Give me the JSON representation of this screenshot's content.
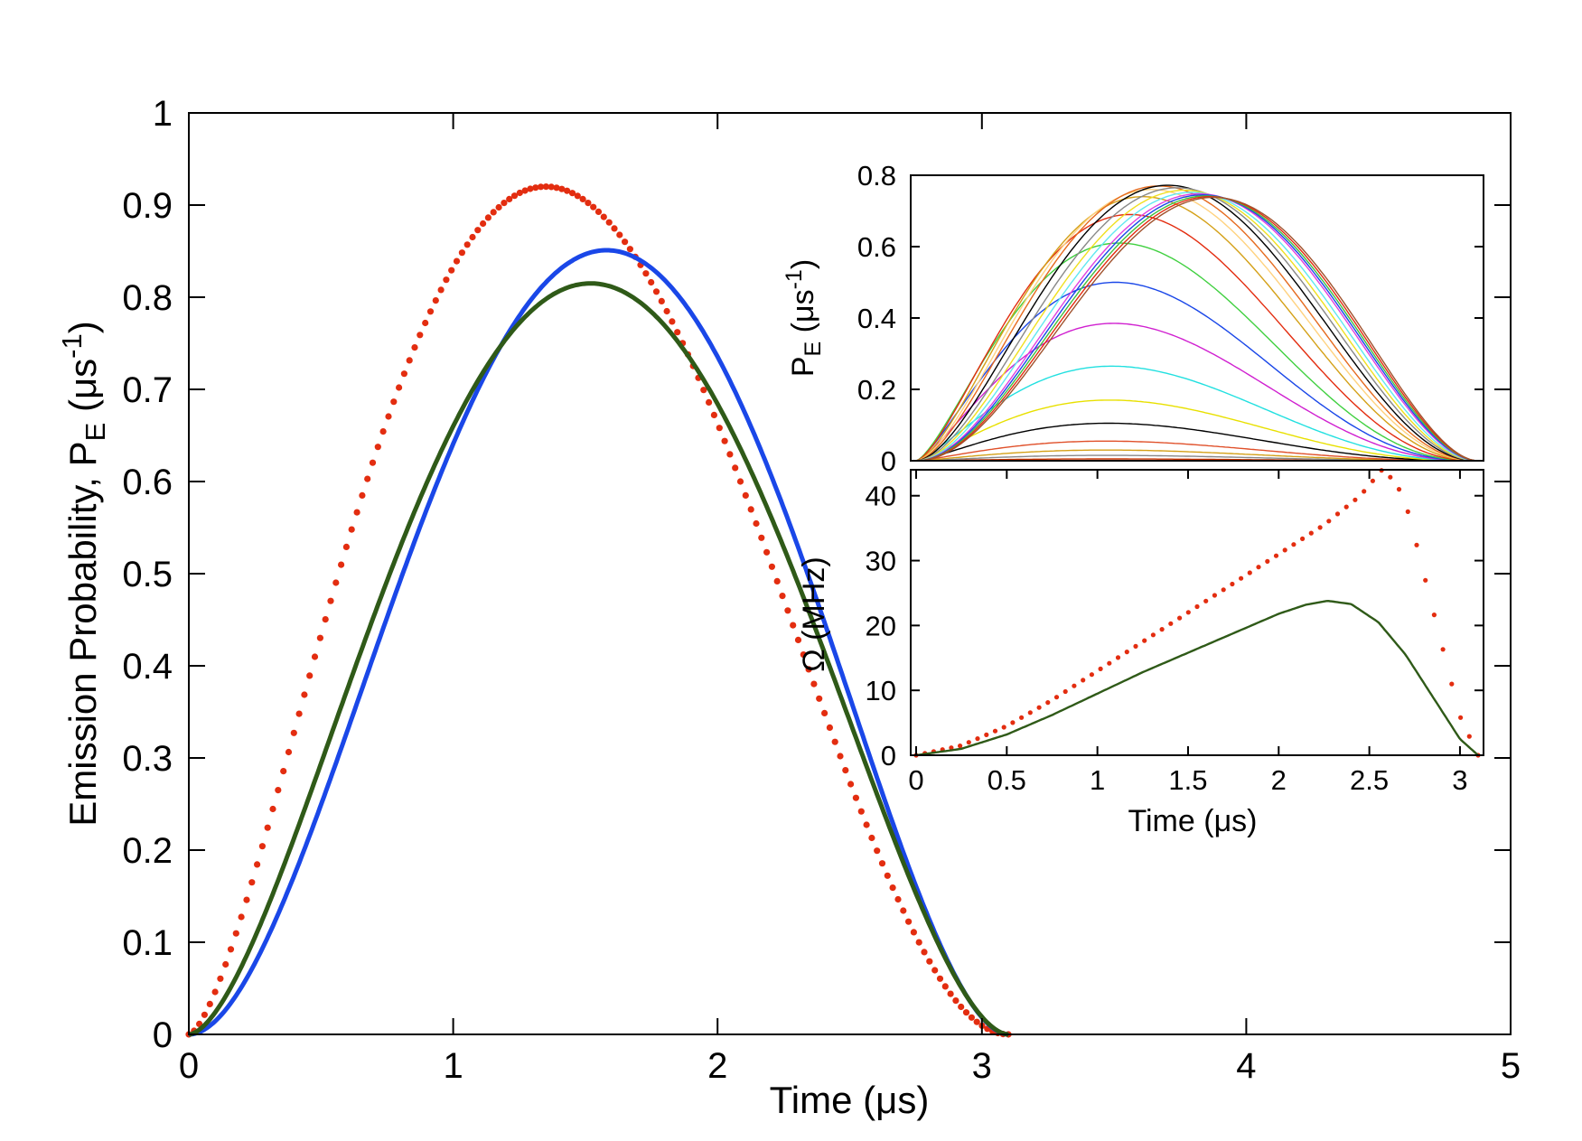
{
  "chart_data": [
    {
      "type": "line",
      "panel": "main",
      "xlabel_parts": [
        "Time (",
        "μ",
        "s)"
      ],
      "ylabel_parts": [
        "Emission Probability, P",
        "E",
        " (",
        "μ",
        "s",
        "-1",
        ")"
      ],
      "xlim": [
        0,
        5
      ],
      "ylim": [
        0,
        1
      ],
      "xticks": [
        0,
        1,
        2,
        3,
        4,
        5
      ],
      "xtick_labels": [
        "0",
        "1",
        "2",
        "3",
        "4",
        "5"
      ],
      "yticks": [
        0,
        0.1,
        0.2,
        0.3,
        0.4,
        0.5,
        0.6,
        0.7,
        0.8,
        0.9,
        1
      ],
      "ytick_labels": [
        "0",
        "0.1",
        "0.2",
        "0.3",
        "0.4",
        "0.5",
        "0.6",
        "0.7",
        "0.8",
        "0.9",
        "1"
      ],
      "series": [
        {
          "name": "red dotted",
          "style": "dots",
          "color": "#e32d10",
          "peak_x": 1.35,
          "peak_y": 0.92,
          "t_end": 3.1,
          "shape_power": 3.6,
          "n_points": 156
        },
        {
          "name": "blue",
          "style": "line",
          "color": "#1a47e8",
          "peak_x": 1.58,
          "peak_y": 0.851,
          "t_end": 3.1,
          "shape_power": 3.8
        },
        {
          "name": "green",
          "style": "line",
          "color": "#2f5a18",
          "peak_x": 1.52,
          "peak_y": 0.815,
          "t_end": 3.1,
          "shape_power": 3.5
        }
      ]
    },
    {
      "type": "line",
      "panel": "inset-top",
      "ylabel_parts": [
        "P",
        "E",
        " (",
        "μ",
        "s",
        "-1",
        ")"
      ],
      "xlim": [
        0,
        3.1
      ],
      "ylim": [
        0,
        0.8
      ],
      "yticks": [
        0,
        0.2,
        0.4,
        0.6,
        0.8
      ],
      "ytick_labels": [
        "0",
        "0.2",
        "0.4",
        "0.6",
        "0.8"
      ],
      "shape_power": 4,
      "t_end": 3.1,
      "series": [
        {
          "peak_x": 1.05,
          "peak_y": 0.005,
          "color": "#cc3300"
        },
        {
          "peak_x": 1.05,
          "peak_y": 0.015,
          "color": "#888888"
        },
        {
          "peak_x": 1.05,
          "peak_y": 0.03,
          "color": "#d4a017"
        },
        {
          "peak_x": 1.05,
          "peak_y": 0.055,
          "color": "#e0502a"
        },
        {
          "peak_x": 1.06,
          "peak_y": 0.105,
          "color": "#000000"
        },
        {
          "peak_x": 1.07,
          "peak_y": 0.17,
          "color": "#e8e000"
        },
        {
          "peak_x": 1.08,
          "peak_y": 0.265,
          "color": "#22e0e0"
        },
        {
          "peak_x": 1.09,
          "peak_y": 0.385,
          "color": "#d020d0"
        },
        {
          "peak_x": 1.1,
          "peak_y": 0.5,
          "color": "#1a47e8"
        },
        {
          "peak_x": 1.12,
          "peak_y": 0.61,
          "color": "#40d040"
        },
        {
          "peak_x": 1.18,
          "peak_y": 0.69,
          "color": "#e32d10"
        },
        {
          "peak_x": 1.25,
          "peak_y": 0.74,
          "color": "#d4a017"
        },
        {
          "peak_x": 1.3,
          "peak_y": 0.76,
          "color": "#ffd27f"
        },
        {
          "peak_x": 1.34,
          "peak_y": 0.77,
          "color": "#e56a1e"
        },
        {
          "peak_x": 1.39,
          "peak_y": 0.772,
          "color": "#000000"
        },
        {
          "peak_x": 1.44,
          "peak_y": 0.765,
          "color": "#888888"
        },
        {
          "peak_x": 1.48,
          "peak_y": 0.758,
          "color": "#f0e020"
        },
        {
          "peak_x": 1.52,
          "peak_y": 0.752,
          "color": "#60e8f0"
        },
        {
          "peak_x": 1.56,
          "peak_y": 0.748,
          "color": "#e040e0"
        },
        {
          "peak_x": 1.58,
          "peak_y": 0.745,
          "color": "#1a47e8"
        },
        {
          "peak_x": 1.6,
          "peak_y": 0.742,
          "color": "#40c040"
        },
        {
          "peak_x": 1.62,
          "peak_y": 0.74,
          "color": "#e32d10"
        },
        {
          "peak_x": 1.64,
          "peak_y": 0.738,
          "color": "#a0522d"
        }
      ]
    },
    {
      "type": "line",
      "panel": "inset-bottom",
      "xlabel_parts": [
        "Time (",
        "μ",
        "s)"
      ],
      "ylabel": "Ω (MHz)",
      "xlim": [
        0,
        3.1
      ],
      "ylim": [
        0,
        44
      ],
      "xticks": [
        0,
        0.5,
        1,
        1.5,
        2,
        2.5,
        3
      ],
      "xtick_labels": [
        "0",
        "0.5",
        "1",
        "1.5",
        "2",
        "2.5",
        "3"
      ],
      "yticks": [
        0,
        10,
        20,
        30,
        40
      ],
      "ytick_labels": [
        "0",
        "10",
        "20",
        "30",
        "40"
      ],
      "series": [
        {
          "name": "red dotted",
          "style": "dots",
          "color": "#e32d10",
          "x": [
            0,
            0.25,
            0.5,
            0.75,
            1.0,
            1.25,
            1.5,
            1.75,
            2.0,
            2.25,
            2.45,
            2.57,
            2.65,
            2.72,
            2.8,
            2.9,
            3.0,
            3.1
          ],
          "y": [
            0,
            1.5,
            4.5,
            8.5,
            13,
            17.5,
            22,
            26.5,
            31,
            35.5,
            40,
            44,
            42,
            37,
            28,
            17,
            6,
            0
          ],
          "n_points": 64
        },
        {
          "name": "green",
          "style": "line",
          "color": "#2f5a18",
          "x": [
            0,
            0.25,
            0.5,
            0.75,
            1.0,
            1.25,
            1.5,
            1.75,
            2.0,
            2.15,
            2.27,
            2.4,
            2.55,
            2.7,
            2.85,
            3.0,
            3.1
          ],
          "y": [
            0,
            1.0,
            3.2,
            6.2,
            9.5,
            12.8,
            15.8,
            18.8,
            21.8,
            23.2,
            23.8,
            23.3,
            20.5,
            15.5,
            9.0,
            2.5,
            0
          ]
        }
      ]
    }
  ]
}
